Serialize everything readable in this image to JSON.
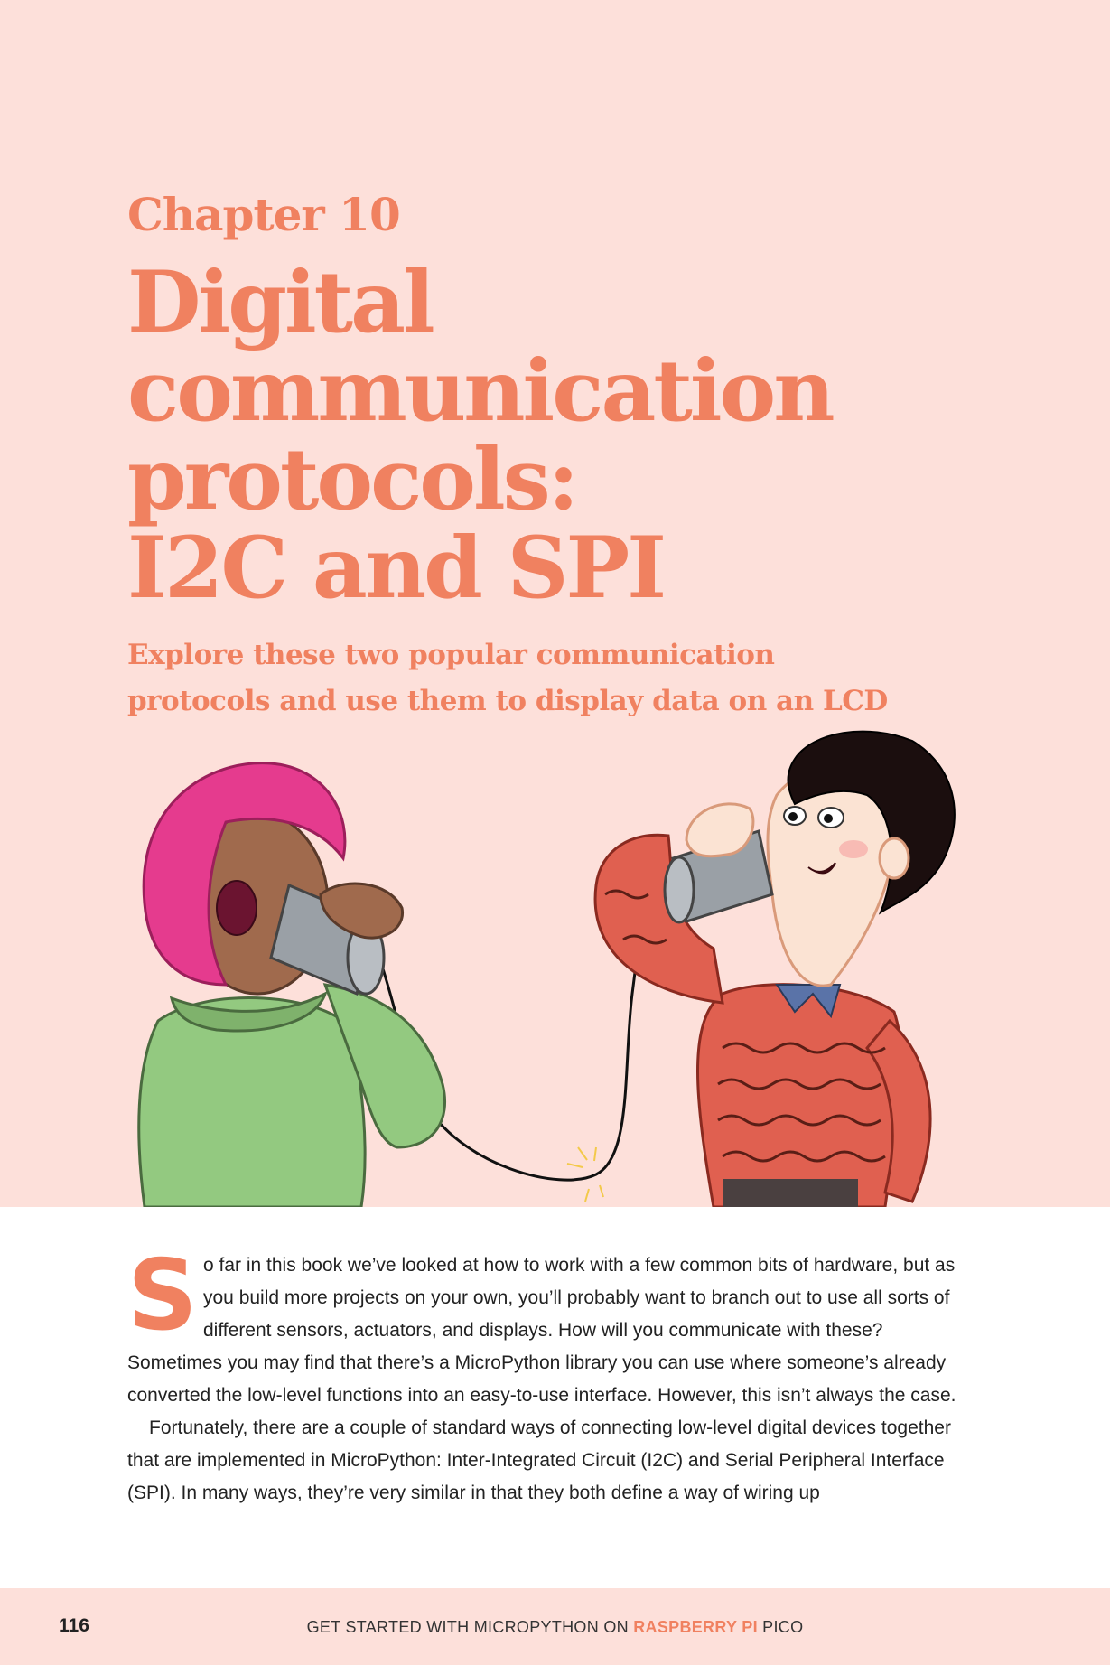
{
  "chapter": {
    "label": "Chapter 10",
    "title_lines": [
      "Digital",
      "communication",
      "protocols:",
      "I2C and SPI"
    ],
    "subtitle_lines": [
      "Explore these two popular communication",
      "protocols and use them to display data on an LCD"
    ]
  },
  "illustration": {
    "description_icon": "tin-can-telephone-illustration"
  },
  "body": {
    "dropcap": "S",
    "paragraph1_rest": "o far in this book we’ve looked at how to work with a few common bits of hardware, but as you build more projects on your own, you’ll probably want to branch out to use all sorts of different sensors, actuators, and displays. How will you communicate with these? Sometimes you may find that there’s a MicroPython library you can use where someone’s already converted the low-level functions into an easy-to-use interface. However, this isn’t always the case.",
    "paragraph2": "Fortunately, there are a couple of standard ways of connecting low-level digital devices together that are implemented in MicroPython: Inter-Integrated Circuit (I2C) and Serial Peripheral Interface (SPI). In many ways, they’re very similar in that they both define a way of wiring up"
  },
  "footer": {
    "page_number": "116",
    "running_head_prefix": "GET STARTED WITH MICROPYTHON ON ",
    "running_head_accent": "RASPBERRY PI",
    "running_head_suffix": " PICO"
  },
  "colors": {
    "accent": "#f08160",
    "background_band": "#fde0da",
    "text": "#222222"
  }
}
